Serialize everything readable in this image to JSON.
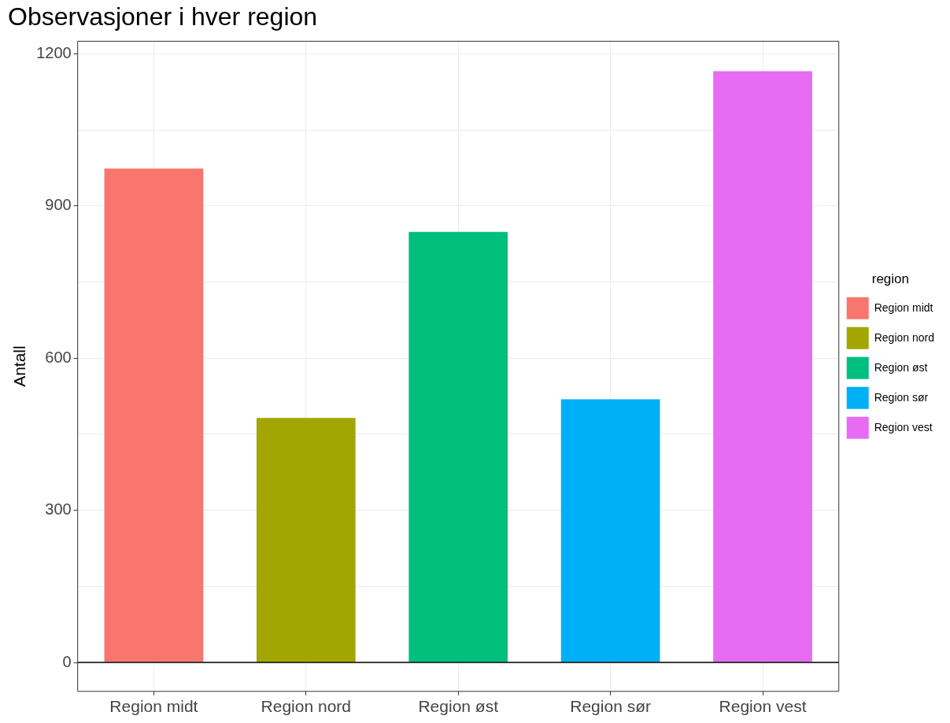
{
  "chart_data": {
    "type": "bar",
    "title": "Observasjoner i hver region",
    "ylabel": "Antall",
    "legend_title": "region",
    "categories": [
      "Region midt",
      "Region nord",
      "Region øst",
      "Region sør",
      "Region vest"
    ],
    "series": [
      {
        "name": "Region midt",
        "color": "#f8766d",
        "values": [
          974,
          null,
          null,
          null,
          null
        ]
      },
      {
        "name": "Region nord",
        "color": "#a3a500",
        "values": [
          null,
          482,
          null,
          null,
          null
        ]
      },
      {
        "name": "Region øst",
        "color": "#00bf7d",
        "values": [
          null,
          null,
          849,
          null,
          null
        ]
      },
      {
        "name": "Region sør",
        "color": "#00b0f6",
        "values": [
          null,
          null,
          null,
          519,
          null
        ]
      },
      {
        "name": "Region vest",
        "color": "#e76bf3",
        "values": [
          null,
          null,
          null,
          null,
          1166
        ]
      }
    ],
    "ylim": [
      -57,
      1225
    ],
    "yticks": [
      0,
      {
        "value": 150,
        "label": null
      },
      300,
      {
        "value": 450,
        "label": null
      },
      600,
      {
        "value": 750,
        "label": null
      },
      900,
      {
        "value": 1050,
        "label": null
      },
      1200
    ],
    "ref_lines": [
      {
        "axis": "y",
        "value": 0,
        "color": "#000000"
      }
    ],
    "grid": true,
    "legend": "right"
  }
}
